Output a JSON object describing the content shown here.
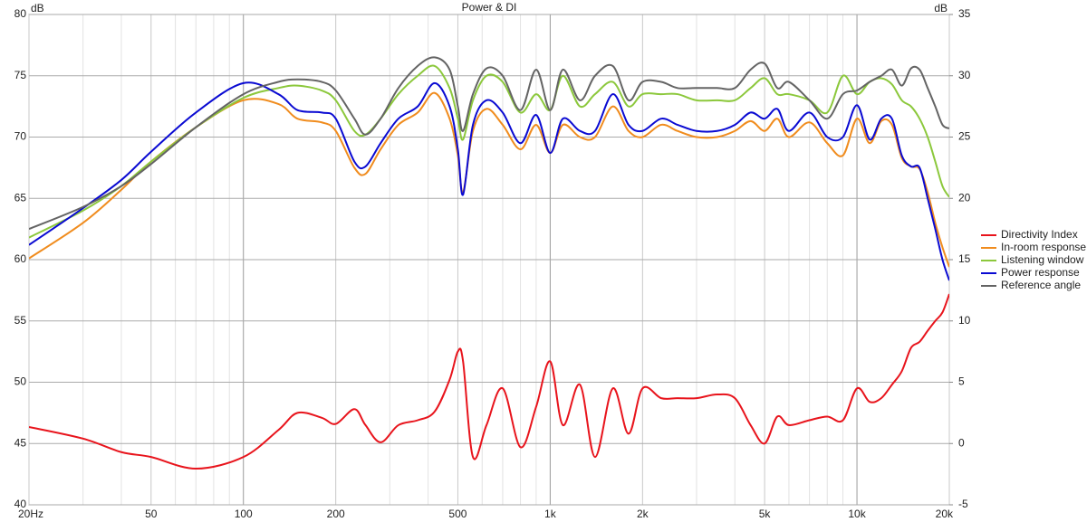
{
  "chart_data": {
    "type": "line",
    "title": "Power & DI",
    "ylabel": "dB",
    "y2label": "dB",
    "log_x": true,
    "grid": true,
    "legend": "right",
    "xlim": [
      20,
      20000
    ],
    "xticks": [
      {
        "value": 20,
        "label": "20Hz"
      },
      50,
      100,
      200,
      500,
      {
        "value": 1000,
        "label": "1k"
      },
      {
        "value": 2000,
        "label": "2k"
      },
      {
        "value": 5000,
        "label": "5k"
      },
      {
        "value": 10000,
        "label": "10k"
      },
      {
        "value": 20000,
        "label": "20k"
      }
    ],
    "xminor": [
      30,
      40,
      60,
      70,
      80,
      90,
      300,
      400,
      600,
      700,
      800,
      900,
      3000,
      4000,
      6000,
      7000,
      8000,
      9000
    ],
    "ylim": [
      40,
      80
    ],
    "yticks": [
      40,
      45,
      50,
      55,
      60,
      65,
      70,
      75,
      80
    ],
    "y2lim": [
      -5,
      35
    ],
    "y2ticks": [
      -5,
      0,
      5,
      10,
      15,
      20,
      25,
      30,
      35
    ],
    "x": [
      20,
      30,
      40,
      50,
      70,
      100,
      130,
      150,
      180,
      200,
      230,
      250,
      280,
      320,
      370,
      420,
      470,
      500,
      520,
      560,
      620,
      700,
      800,
      900,
      1000,
      1100,
      1250,
      1400,
      1600,
      1800,
      2000,
      2300,
      2600,
      3000,
      3500,
      4000,
      4500,
      5000,
      5500,
      6000,
      7000,
      8000,
      9000,
      10000,
      11000,
      12000,
      13000,
      14000,
      15000,
      16000,
      17000,
      18000,
      19000,
      20000
    ],
    "series": [
      {
        "name": "Directivity Index",
        "color": "#e8141c",
        "axis": "y2",
        "values": [
          1.35,
          0.4,
          -0.7,
          -1.1,
          -2.05,
          -1.1,
          1.1,
          2.5,
          2.1,
          1.6,
          2.8,
          1.5,
          0.1,
          1.5,
          1.9,
          2.6,
          5.2,
          7.5,
          6.7,
          -1.1,
          1.5,
          4.5,
          -0.3,
          3,
          6.7,
          1.5,
          4.8,
          -1.1,
          4.5,
          0.8,
          4.5,
          3.7,
          3.7,
          3.7,
          4,
          3.7,
          1.5,
          0,
          2.2,
          1.5,
          1.9,
          2.2,
          1.9,
          4.5,
          3.4,
          3.7,
          4.8,
          5.9,
          7.8,
          8.3,
          9.2,
          10,
          10.7,
          12.2
        ]
      },
      {
        "name": "In-room response",
        "color": "#f08c1e",
        "values": [
          60.1,
          63,
          65.7,
          68,
          70.8,
          73,
          72.7,
          71.5,
          71.2,
          70.5,
          67.5,
          67,
          69,
          71,
          72,
          73.6,
          71.5,
          68.5,
          65.5,
          70.5,
          72.3,
          71,
          69,
          71,
          68.7,
          71,
          70,
          70,
          72.5,
          70.5,
          70,
          71,
          70.5,
          70,
          70,
          70.5,
          71.3,
          70.5,
          71.5,
          70,
          71.2,
          69.5,
          68.5,
          71.5,
          69.5,
          71.3,
          71,
          68.3,
          67.6,
          67.4,
          65.5,
          63,
          61,
          59.4
        ]
      },
      {
        "name": "Listening window",
        "color": "#8cc83c",
        "values": [
          61.8,
          64,
          66,
          68,
          70.8,
          73.2,
          74,
          74.2,
          73.8,
          73,
          70.5,
          70.2,
          71.5,
          73.5,
          75,
          75.8,
          74,
          71.5,
          69.8,
          73,
          75,
          74.5,
          72,
          73.5,
          72.2,
          75,
          72.5,
          73.5,
          74.5,
          72.5,
          73.5,
          73.5,
          73.5,
          73,
          73,
          73,
          74,
          74.8,
          73.5,
          73.5,
          73,
          72,
          75,
          73.5,
          74.5,
          74.8,
          74.3,
          73,
          72.5,
          71.5,
          70,
          68,
          66,
          65.1
        ]
      },
      {
        "name": "Power response",
        "color": "#0a0ad2",
        "values": [
          61.2,
          64.2,
          66.5,
          68.8,
          72,
          74.4,
          73.5,
          72.2,
          72,
          71.5,
          68,
          67.6,
          69.5,
          71.5,
          72.5,
          74.4,
          72.5,
          69,
          65.3,
          71,
          73,
          72,
          69.5,
          71.8,
          68.7,
          71.5,
          70.5,
          70.5,
          73.5,
          71,
          70.5,
          71.5,
          71,
          70.5,
          70.5,
          71,
          72,
          71.5,
          72.3,
          70.5,
          72,
          70,
          70,
          72.6,
          69.8,
          71.5,
          71.5,
          68.5,
          67.6,
          67.5,
          65,
          62.5,
          60,
          58.3
        ]
      },
      {
        "name": "Reference angle",
        "color": "#646464",
        "values": [
          62.5,
          64.3,
          66,
          67.8,
          70.8,
          73.5,
          74.5,
          74.7,
          74.5,
          73.8,
          71.5,
          70.2,
          71.5,
          74,
          75.8,
          76.5,
          75.5,
          72.5,
          70.5,
          73.5,
          75.6,
          75,
          72.2,
          75.5,
          72.2,
          75.5,
          73,
          75,
          75.8,
          73,
          74.5,
          74.5,
          74,
          74,
          74,
          74,
          75.5,
          76,
          74,
          74.5,
          73,
          71.5,
          73.5,
          73.8,
          74.5,
          75,
          75.5,
          74.2,
          75.6,
          75.5,
          74,
          72.5,
          71,
          70.7
        ]
      }
    ]
  }
}
